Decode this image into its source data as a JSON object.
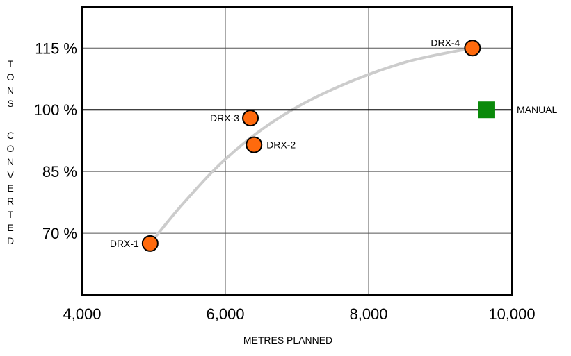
{
  "chart_data": {
    "type": "scatter",
    "title": "",
    "xlabel": "METRES PLANNED",
    "ylabel": "TONS CONVERTED",
    "xlim": [
      4000,
      10000
    ],
    "ylim": [
      55,
      125
    ],
    "x_ticks": [
      {
        "value": 4000,
        "label": "4,000"
      },
      {
        "value": 6000,
        "label": "6,000"
      },
      {
        "value": 8000,
        "label": "8,000"
      },
      {
        "value": 10000,
        "label": "10,000"
      }
    ],
    "y_ticks": [
      {
        "value": 70,
        "label": "70 %"
      },
      {
        "value": 85,
        "label": "85 %"
      },
      {
        "value": 100,
        "label": "100 %"
      },
      {
        "value": 115,
        "label": "115 %"
      }
    ],
    "grid": true,
    "points": [
      {
        "label": "DRX-1",
        "x": 4950,
        "y": 67.5,
        "color": "#ff6a0d",
        "label_side": "left"
      },
      {
        "label": "DRX-2",
        "x": 6400,
        "y": 91.5,
        "color": "#ff6a0d",
        "label_side": "right"
      },
      {
        "label": "DRX-3",
        "x": 6350,
        "y": 98,
        "color": "#ff6a0d",
        "label_side": "left"
      },
      {
        "label": "DRX-4",
        "x": 9450,
        "y": 115,
        "color": "#ff6a0d",
        "label_side": "left-top"
      }
    ],
    "reference": {
      "label": "MANUAL",
      "y": 100,
      "marker_x": 9650,
      "marker_color": "#0a8a0a"
    },
    "trend_curve": {
      "color": "#cccccc",
      "points": [
        [
          4950,
          67.5
        ],
        [
          5400,
          77
        ],
        [
          6000,
          88
        ],
        [
          6700,
          97.5
        ],
        [
          7500,
          105
        ],
        [
          8500,
          111.5
        ],
        [
          9450,
          115
        ]
      ]
    }
  }
}
